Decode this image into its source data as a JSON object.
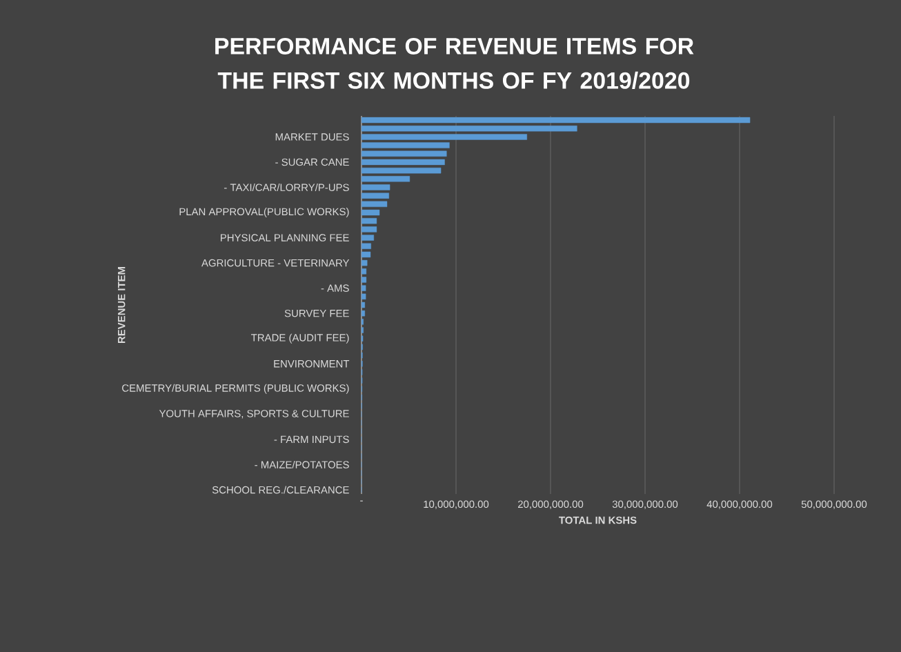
{
  "chart_data": {
    "type": "bar",
    "orientation": "horizontal",
    "title": "PERFORMANCE OF REVENUE ITEMS FOR THE FIRST SIX MONTHS OF FY 2019/2020",
    "xlabel": "TOTAL IN KSHS",
    "ylabel": "REVENUE ITEM",
    "categories": [
      null,
      null,
      "MARKET DUES",
      null,
      null,
      "- SUGAR CANE",
      null,
      null,
      "- TAXI/CAR/LORRY/P-UPS",
      null,
      null,
      "PLAN APPROVAL(PUBLIC WORKS)",
      null,
      null,
      "PHYSICAL PLANNING FEE",
      null,
      null,
      "AGRICULTURE     - VETERINARY",
      null,
      null,
      "- AMS",
      null,
      null,
      "SURVEY FEE",
      null,
      null,
      "TRADE (AUDIT FEE)",
      null,
      null,
      "ENVIRONMENT",
      null,
      null,
      "CEMETRY/BURIAL PERMITS (PUBLIC WORKS)",
      null,
      null,
      "YOUTH AFFAIRS, SPORTS & CULTURE",
      null,
      null,
      "- FARM INPUTS",
      null,
      null,
      "- MAIZE/POTATOES",
      null,
      null,
      "SCHOOL REG./CLEARANCE"
    ],
    "values": [
      41100000,
      22800000,
      17500000,
      9300000,
      9000000,
      8800000,
      8400000,
      5100000,
      3000000,
      2900000,
      2700000,
      1900000,
      1600000,
      1600000,
      1300000,
      1000000,
      950000,
      600000,
      500000,
      500000,
      450000,
      450000,
      350000,
      350000,
      200000,
      200000,
      150000,
      120000,
      100000,
      100000,
      80000,
      80000,
      60000,
      50000,
      40000,
      0,
      0,
      0,
      0,
      0,
      0,
      0,
      0,
      0,
      0
    ],
    "color": "#5b9bd5",
    "xlim": [
      0,
      50000000
    ],
    "xticks": [
      {
        "value": 0,
        "label": "-"
      },
      {
        "value": 10000000,
        "label": "10,000,000.00"
      },
      {
        "value": 20000000,
        "label": "20,000,000.00"
      },
      {
        "value": 30000000,
        "label": "30,000,000.00"
      },
      {
        "value": 40000000,
        "label": "40,000,000.00"
      },
      {
        "value": 50000000,
        "label": "50,000,000.00"
      }
    ],
    "grid": "x"
  }
}
